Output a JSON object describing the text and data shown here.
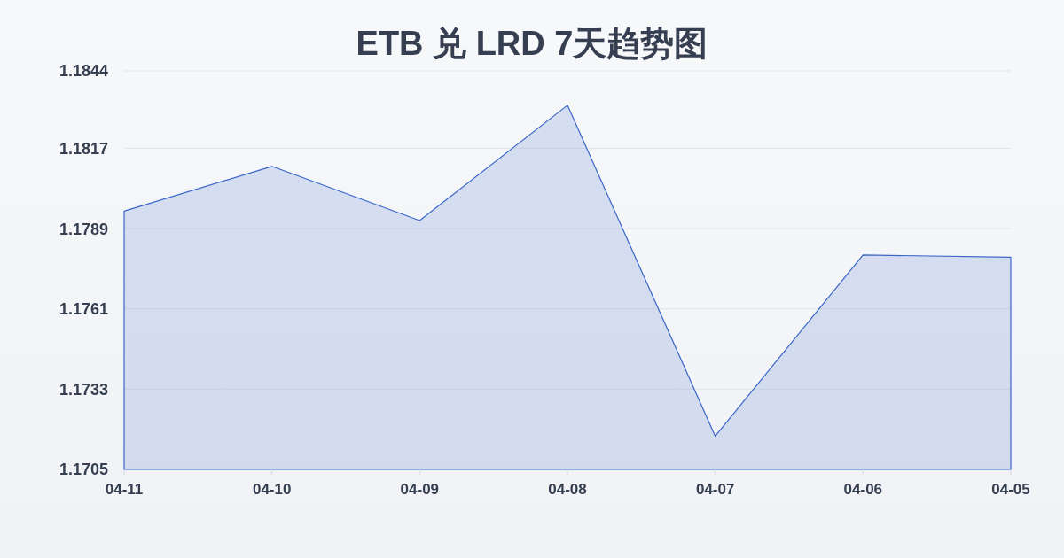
{
  "chart_data": {
    "type": "area",
    "title": "ETB 兑 LRD 7天趋势图",
    "categories": [
      "04-11",
      "04-10",
      "04-09",
      "04-08",
      "04-07",
      "04-06",
      "04-05"
    ],
    "values": [
      1.17951,
      1.18107,
      1.17918,
      1.1832,
      1.17166,
      1.17798,
      1.1779
    ],
    "color": "#3a66c9",
    "ylim": [
      1.1705,
      1.1844
    ],
    "yticks": [
      1.1705,
      1.1733,
      1.1761,
      1.1789,
      1.1817,
      1.1844
    ],
    "grid": "y"
  }
}
